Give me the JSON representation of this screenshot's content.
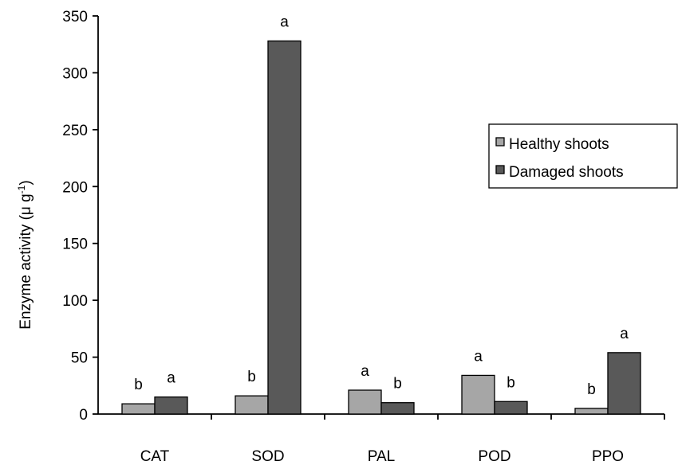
{
  "chart_data": {
    "type": "bar",
    "title": "",
    "xlabel": "",
    "ylabel": "Enzyme activity (μ g",
    "ylabel_superscript": "-1",
    "ylabel_suffix": ")",
    "ylim": [
      0,
      350
    ],
    "yticks": [
      "0",
      "50",
      "100",
      "150",
      "200",
      "250",
      "300",
      "350"
    ],
    "categories": [
      "CAT",
      "SOD",
      "PAL",
      "POD",
      "PPO"
    ],
    "series": [
      {
        "name": "Healthy shoots",
        "color": "#a6a6a6",
        "values": [
          9,
          16,
          21,
          34,
          5
        ],
        "labels": [
          "b",
          "b",
          "a",
          "a",
          "b"
        ]
      },
      {
        "name": "Damaged shoots",
        "color": "#595959",
        "values": [
          15,
          328,
          10,
          11,
          54
        ],
        "labels": [
          "a",
          "a",
          "b",
          "b",
          "a"
        ]
      }
    ],
    "legend_position": "right",
    "grid": false
  }
}
